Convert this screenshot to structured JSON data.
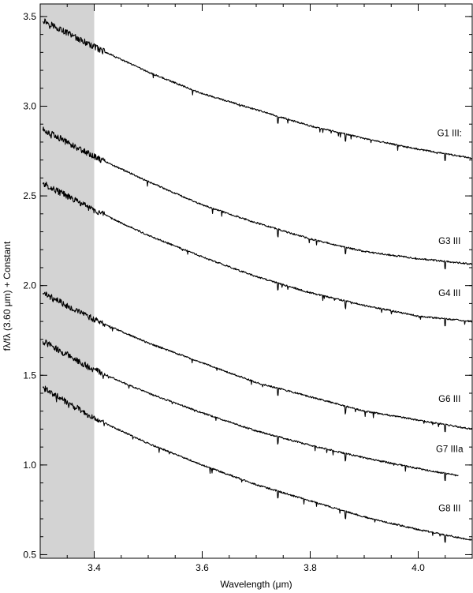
{
  "chart_data": {
    "type": "line",
    "xlabel": "Wavelength (μm)",
    "ylabel": "fλ/fλ (3.60 μm) + Constant",
    "xlim": [
      3.3,
      4.1
    ],
    "ylim": [
      0.48,
      3.57
    ],
    "shaded_region": {
      "x0": 3.3,
      "x1": 3.4,
      "color": "#d3d3d3"
    },
    "x_ticks": [
      3.4,
      3.6,
      3.8,
      4.0
    ],
    "x_tick_labels": [
      "3.4",
      "3.6",
      "3.8",
      "4.0"
    ],
    "y_ticks": [
      0.5,
      1.0,
      1.5,
      2.0,
      2.5,
      3.0,
      3.5
    ],
    "y_tick_labels": [
      "0.5",
      "1.0",
      "1.5",
      "2.0",
      "2.5",
      "3.0",
      "3.5"
    ],
    "series": [
      {
        "name": "G1 III:",
        "color": "#000000",
        "x_range": [
          3.305,
          4.1
        ],
        "points": [
          [
            3.305,
            3.48
          ],
          [
            3.4,
            3.33
          ],
          [
            3.5,
            3.19
          ],
          [
            3.6,
            3.07
          ],
          [
            3.7,
            2.98
          ],
          [
            3.8,
            2.89
          ],
          [
            3.9,
            2.82
          ],
          [
            4.0,
            2.76
          ],
          [
            4.1,
            2.71
          ]
        ]
      },
      {
        "name": "G3 III",
        "color": "#000000",
        "x_range": [
          3.305,
          4.1
        ],
        "points": [
          [
            3.305,
            2.87
          ],
          [
            3.4,
            2.72
          ],
          [
            3.5,
            2.58
          ],
          [
            3.6,
            2.45
          ],
          [
            3.7,
            2.35
          ],
          [
            3.8,
            2.26
          ],
          [
            3.9,
            2.19
          ],
          [
            4.0,
            2.15
          ],
          [
            4.1,
            2.12
          ]
        ]
      },
      {
        "name": "G4 III",
        "color": "#000000",
        "x_range": [
          3.305,
          4.1
        ],
        "points": [
          [
            3.305,
            2.57
          ],
          [
            3.4,
            2.42
          ],
          [
            3.5,
            2.28
          ],
          [
            3.6,
            2.16
          ],
          [
            3.7,
            2.05
          ],
          [
            3.8,
            1.96
          ],
          [
            3.9,
            1.89
          ],
          [
            4.0,
            1.83
          ],
          [
            4.1,
            1.8
          ]
        ]
      },
      {
        "name": "G6 III",
        "color": "#000000",
        "x_range": [
          3.305,
          4.1
        ],
        "points": [
          [
            3.305,
            1.96
          ],
          [
            3.4,
            1.81
          ],
          [
            3.5,
            1.68
          ],
          [
            3.6,
            1.57
          ],
          [
            3.7,
            1.46
          ],
          [
            3.8,
            1.38
          ],
          [
            3.9,
            1.3
          ],
          [
            4.0,
            1.25
          ],
          [
            4.1,
            1.2
          ]
        ]
      },
      {
        "name": "G7 IIIa",
        "color": "#000000",
        "x_range": [
          3.305,
          4.075
        ],
        "points": [
          [
            3.305,
            1.69
          ],
          [
            3.4,
            1.53
          ],
          [
            3.5,
            1.4
          ],
          [
            3.6,
            1.29
          ],
          [
            3.7,
            1.19
          ],
          [
            3.8,
            1.11
          ],
          [
            3.9,
            1.04
          ],
          [
            4.0,
            0.98
          ],
          [
            4.075,
            0.94
          ]
        ]
      },
      {
        "name": "G8 III",
        "color": "#000000",
        "x_range": [
          3.305,
          4.1
        ],
        "points": [
          [
            3.305,
            1.43
          ],
          [
            3.4,
            1.26
          ],
          [
            3.5,
            1.12
          ],
          [
            3.6,
            1.0
          ],
          [
            3.7,
            0.89
          ],
          [
            3.8,
            0.8
          ],
          [
            3.9,
            0.71
          ],
          [
            4.0,
            0.64
          ],
          [
            4.1,
            0.58
          ]
        ]
      }
    ],
    "series_labels": [
      {
        "text": "G1 III:",
        "x": 4.058,
        "y": 2.85
      },
      {
        "text": "G3 III",
        "x": 4.058,
        "y": 2.25
      },
      {
        "text": "G4 III",
        "x": 4.058,
        "y": 1.96
      },
      {
        "text": "G6 III",
        "x": 4.058,
        "y": 1.37
      },
      {
        "text": "G7 IIIa",
        "x": 4.058,
        "y": 1.09
      },
      {
        "text": "G8 III",
        "x": 4.058,
        "y": 0.76
      }
    ],
    "grid": false,
    "legend": "none"
  }
}
